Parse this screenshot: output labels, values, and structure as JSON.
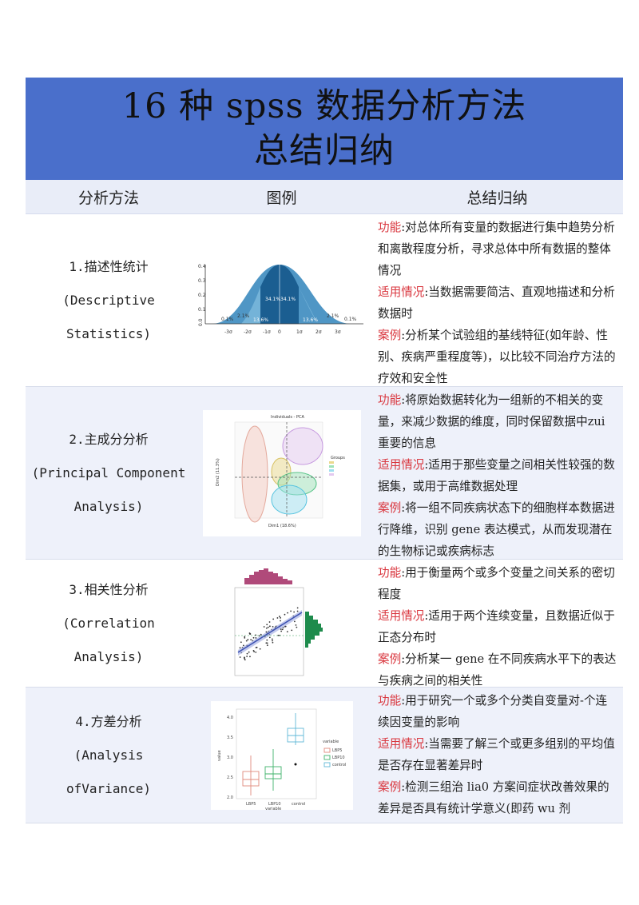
{
  "title": {
    "line1": "16 种 spss 数据分析方法",
    "line2": "总结归纳"
  },
  "columns": [
    "分析方法",
    "图例",
    "总结归纳"
  ],
  "labels": {
    "function": "功能",
    "usage": "适用情况",
    "case": "案例"
  },
  "rows": [
    {
      "name": "1.描述性统计",
      "en1": "(Descriptive",
      "en2": "Statistics)",
      "function": ":对总体所有变量的数据进行集中趋势分析和离散程度分析，寻求总体中所有数据的整体情况",
      "usage": ":当数据需要简洁、直观地描述和分析数据时",
      "case": ":分析某个试验组的基线特征(如年龄、性别、疾病严重程度等)，以比较不同治疗方法的疗效和安全性"
    },
    {
      "name": "2.主成分分析",
      "en1": "(Principal Component",
      "en2": "Analysis)",
      "function": ":将原始数据转化为一组新的不相关的变量，来减少数据的维度，同时保留数据中zui 重要的信息",
      "usage": ":适用于那些变量之间相关性较强的数据集，或用于高维数据处理",
      "case": ":将一组不同疾病状态下的细胞样本数据进行降维，识别 gene 表达模式，从而发现潜在的生物标记或疾病标志"
    },
    {
      "name": "3.相关性分析",
      "en1": "(Correlation",
      "en2": "Analysis)",
      "function": ":用于衡量两个或多个变量之间关系的密切程度",
      "usage": ":适用于两个连续变量，且数据近似于正态分布时",
      "case": ":分析某一 gene 在不同疾病水平下的表达与疾病之间的相关性"
    },
    {
      "name": "4.方差分析",
      "en1": "(Analysis",
      "en2": "ofVariance)",
      "function": ":用于研究一个或多个分类自变量对-个连续因变量的影响",
      "usage": ":当需要了解三个或更多组别的平均值是否存在显著差异时",
      "case": ":检测三组治 lia0 方案间症状改善效果的差异是否具有统计学意义(即药 wu 剂"
    }
  ],
  "figures": {
    "normal": {
      "yticks": [
        "0.0",
        "0.1",
        "0.2",
        "0.3",
        "0.4"
      ],
      "xticks": [
        "-3σ",
        "-2σ",
        "-1σ",
        "0",
        "1σ",
        "2σ",
        "3σ"
      ],
      "pcts": [
        "0.1%",
        "2.1%",
        "13.6%",
        "34.1%",
        "34.1%",
        "13.6%",
        "2.1%",
        "0.1%"
      ]
    },
    "pca": {
      "title": "Individuals - PCA",
      "xlabel": "Dim1 (18.6%)",
      "ylabel": "Dim2 (11.3%)",
      "legend_title": "Groups"
    },
    "box": {
      "ylabel": "value",
      "xlabel": "variable",
      "categories": [
        "LBP5",
        "LBP10",
        "control"
      ],
      "yticks": [
        "2.0",
        "2.5",
        "3.0",
        "3.5",
        "4.0"
      ],
      "legend_title": "variable"
    }
  },
  "colors": {
    "banner": "#4a6fcb",
    "label": "#d9363e",
    "alt_row": "#eef1fa"
  }
}
